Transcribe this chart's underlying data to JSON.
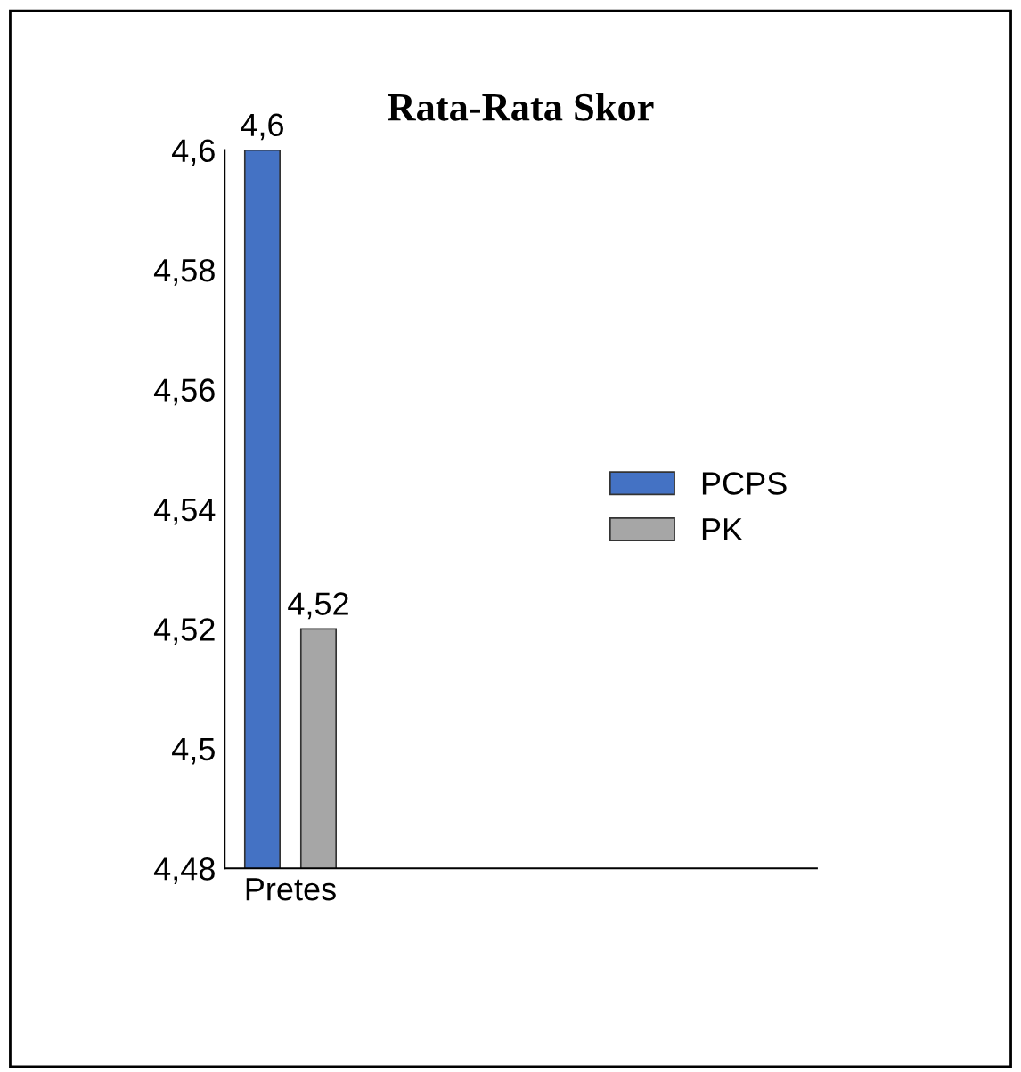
{
  "chart_data": {
    "type": "bar",
    "title": "Rata-Rata Skor",
    "categories": [
      "Pretes"
    ],
    "series": [
      {
        "name": "PCPS",
        "color": "#4472c4",
        "values": [
          4.6
        ],
        "value_labels": [
          "4,6"
        ]
      },
      {
        "name": "PK",
        "color": "#a6a6a6",
        "values": [
          4.52
        ],
        "value_labels": [
          "4,52"
        ]
      }
    ],
    "ylim": [
      4.48,
      4.6
    ],
    "yticks": [
      {
        "value": 4.48,
        "label": "4,48"
      },
      {
        "value": 4.5,
        "label": "4,5"
      },
      {
        "value": 4.52,
        "label": "4,52"
      },
      {
        "value": 4.54,
        "label": "4,54"
      },
      {
        "value": 4.56,
        "label": "4,56"
      },
      {
        "value": 4.58,
        "label": "4,58"
      },
      {
        "value": 4.6,
        "label": "4,6"
      }
    ],
    "grid": false,
    "legend": "right"
  }
}
